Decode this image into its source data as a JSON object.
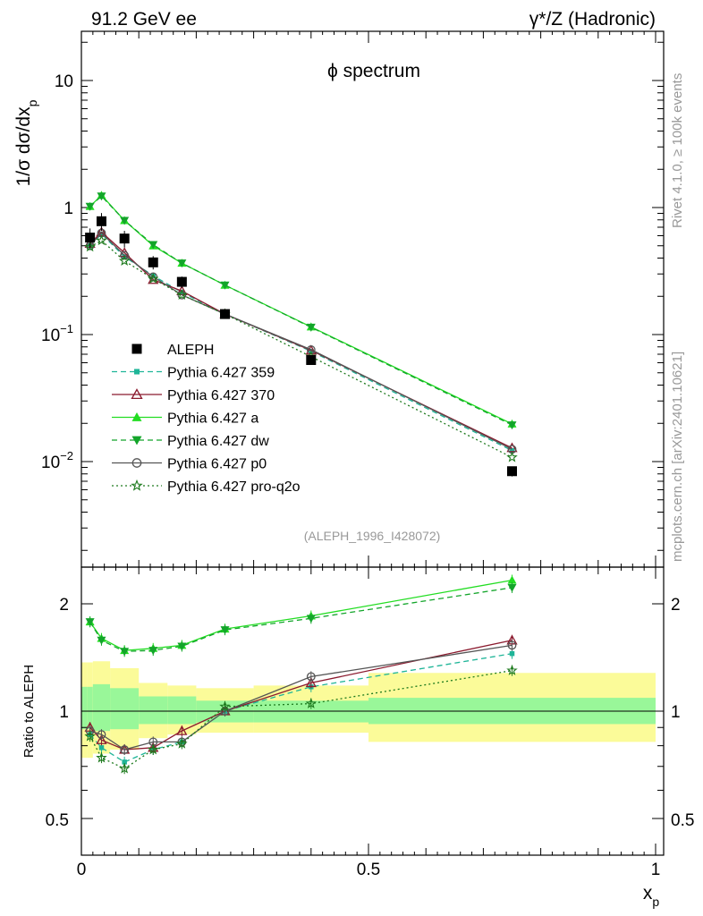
{
  "header": {
    "left": "91.2 GeV ee",
    "right": "γ*/Z (Hadronic)"
  },
  "side_labels": {
    "rivet": "Rivet 4.1.0, ≥ 100k events",
    "mcplots": "mcplots.cern.ch [arXiv:2401.10621]"
  },
  "colors": {
    "aleph": "#000000",
    "p359": "#1fb598",
    "p370": "#8b1a2e",
    "pa": "#22dd22",
    "pdw": "#13a52a",
    "pp0": "#555555",
    "pq2o": "#1d7a1d",
    "band_inner": "#99f799",
    "band_outer": "#fbfb99"
  },
  "chart_data": [
    {
      "type": "line",
      "panel": "main",
      "title": "ϕ spectrum",
      "ylabel": "1/σ  dσ/dx_p",
      "yscale": "log",
      "ylim": [
        0.0015,
        25
      ],
      "xlim": [
        0,
        1
      ],
      "ytick_labels": [
        "10",
        "1",
        "10^−1",
        "10^−2"
      ],
      "ytick_values": [
        10,
        1,
        0.1,
        0.01
      ],
      "annotation": "(ALEPH_1996_I428072)",
      "legend_position": "lower-left",
      "x": [
        0.015,
        0.035,
        0.075,
        0.125,
        0.175,
        0.25,
        0.4,
        0.75
      ],
      "reference": {
        "name": "ALEPH",
        "values": [
          0.58,
          0.78,
          0.57,
          0.37,
          0.26,
          0.145,
          0.063,
          0.0084
        ],
        "rel_errors": [
          0.18,
          0.16,
          0.15,
          0.12,
          0.1,
          0.07,
          0.07,
          0.09
        ]
      },
      "series": [
        {
          "key": "p359",
          "name": "Pythia 6.427 359",
          "style": "dashed",
          "marker": "square",
          "values": [
            0.5,
            0.62,
            0.41,
            0.29,
            0.215,
            0.145,
            0.074,
            0.0122
          ]
        },
        {
          "key": "p370",
          "name": "Pythia 6.427 370",
          "style": "solid",
          "marker": "triangle-open",
          "values": [
            0.52,
            0.64,
            0.44,
            0.27,
            0.22,
            0.145,
            0.075,
            0.0128
          ]
        },
        {
          "key": "pa",
          "name": "Pythia 6.427 a",
          "style": "solid",
          "marker": "triangle",
          "values": [
            1.02,
            1.25,
            0.79,
            0.5,
            0.365,
            0.245,
            0.115,
            0.0198
          ]
        },
        {
          "key": "pdw",
          "name": "Pythia 6.427 dw",
          "style": "dashed",
          "marker": "triangle-down",
          "values": [
            1.02,
            1.23,
            0.79,
            0.51,
            0.365,
            0.245,
            0.114,
            0.0194
          ]
        },
        {
          "key": "pp0",
          "name": "Pythia 6.427 p0",
          "style": "solid",
          "marker": "circle-open",
          "values": [
            0.5,
            0.63,
            0.42,
            0.285,
            0.205,
            0.145,
            0.076,
            0.0125
          ]
        },
        {
          "key": "pq2o",
          "name": "Pythia 6.427 pro-q2o",
          "style": "dotted",
          "marker": "star",
          "values": [
            0.49,
            0.55,
            0.38,
            0.275,
            0.205,
            0.145,
            0.067,
            0.0108
          ]
        }
      ]
    },
    {
      "type": "line",
      "panel": "ratio",
      "ylabel": "Ratio to ALEPH",
      "xlabel": "x_p",
      "yscale": "log",
      "ylim": [
        0.4,
        2.45
      ],
      "xlim": [
        0,
        1
      ],
      "ytick_labels": [
        "2",
        "1",
        "0.5"
      ],
      "ytick_values": [
        2,
        1,
        0.5
      ],
      "xtick_labels": [
        "0",
        "0.5",
        "1"
      ],
      "xtick_values": [
        0,
        0.5,
        1
      ],
      "bands": {
        "edges": [
          0,
          0.01,
          0.02,
          0.05,
          0.1,
          0.15,
          0.2,
          0.3,
          0.5,
          1.0
        ],
        "inner": [
          [
            0.89,
            1.17
          ],
          [
            0.89,
            1.17
          ],
          [
            0.88,
            1.19
          ],
          [
            0.89,
            1.16
          ],
          [
            0.92,
            1.1
          ],
          [
            0.92,
            1.1
          ],
          [
            0.93,
            1.07
          ],
          [
            0.93,
            1.07
          ],
          [
            0.92,
            1.09
          ]
        ],
        "outer": [
          [
            0.74,
            1.37
          ],
          [
            0.74,
            1.37
          ],
          [
            0.76,
            1.38
          ],
          [
            0.78,
            1.32
          ],
          [
            0.84,
            1.2
          ],
          [
            0.86,
            1.18
          ],
          [
            0.87,
            1.16
          ],
          [
            0.87,
            1.18
          ],
          [
            0.82,
            1.28
          ]
        ]
      },
      "x": [
        0.015,
        0.035,
        0.075,
        0.125,
        0.175,
        0.25,
        0.4,
        0.75
      ],
      "series": [
        {
          "key": "p359",
          "name": "Pythia 6.427 359",
          "style": "dashed",
          "marker": "square",
          "values": [
            0.86,
            0.79,
            0.72,
            0.78,
            0.82,
            1.0,
            1.17,
            1.45
          ]
        },
        {
          "key": "p370",
          "name": "Pythia 6.427 370",
          "style": "solid",
          "marker": "triangle-open",
          "values": [
            0.9,
            0.83,
            0.78,
            0.79,
            0.88,
            1.0,
            1.2,
            1.58
          ]
        },
        {
          "key": "pa",
          "name": "Pythia 6.427 a",
          "style": "solid",
          "marker": "triangle",
          "values": [
            1.78,
            1.6,
            1.48,
            1.5,
            1.53,
            1.7,
            1.85,
            2.33
          ]
        },
        {
          "key": "pdw",
          "name": "Pythia 6.427 dw",
          "style": "dashed",
          "marker": "triangle-down",
          "values": [
            1.78,
            1.58,
            1.47,
            1.48,
            1.52,
            1.69,
            1.82,
            2.22
          ]
        },
        {
          "key": "pp0",
          "name": "Pythia 6.427 p0",
          "style": "solid",
          "marker": "circle-open",
          "values": [
            0.88,
            0.86,
            0.78,
            0.82,
            0.82,
            1.0,
            1.25,
            1.53
          ]
        },
        {
          "key": "pq2o",
          "name": "Pythia 6.427 pro-q2o",
          "style": "dotted",
          "marker": "star",
          "values": [
            0.85,
            0.74,
            0.69,
            0.78,
            0.81,
            1.03,
            1.05,
            1.3
          ]
        }
      ]
    }
  ]
}
